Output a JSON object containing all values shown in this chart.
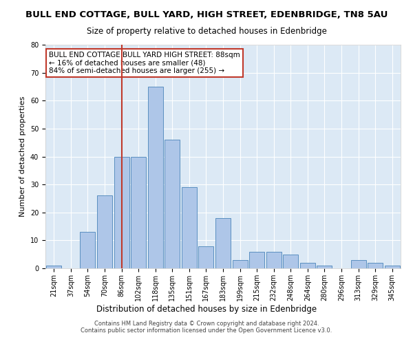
{
  "title": "BULL END COTTAGE, BULL YARD, HIGH STREET, EDENBRIDGE, TN8 5AU",
  "subtitle": "Size of property relative to detached houses in Edenbridge",
  "xlabel": "Distribution of detached houses by size in Edenbridge",
  "ylabel": "Number of detached properties",
  "categories": [
    "21sqm",
    "37sqm",
    "54sqm",
    "70sqm",
    "86sqm",
    "102sqm",
    "118sqm",
    "135sqm",
    "151sqm",
    "167sqm",
    "183sqm",
    "199sqm",
    "215sqm",
    "232sqm",
    "248sqm",
    "264sqm",
    "280sqm",
    "296sqm",
    "313sqm",
    "329sqm",
    "345sqm"
  ],
  "values": [
    1,
    0,
    13,
    26,
    40,
    40,
    65,
    46,
    29,
    8,
    18,
    3,
    6,
    6,
    5,
    2,
    1,
    0,
    3,
    2,
    1
  ],
  "bar_color": "#aec6e8",
  "bar_edge_color": "#5a8fc0",
  "background_color": "#dce9f5",
  "vline_x_index": 4,
  "vline_color": "#c0392b",
  "annotation_text": "BULL END COTTAGE BULL YARD HIGH STREET: 88sqm\n← 16% of detached houses are smaller (48)\n84% of semi-detached houses are larger (255) →",
  "annotation_box_color": "#ffffff",
  "annotation_box_edge": "#c0392b",
  "ylim": [
    0,
    80
  ],
  "yticks": [
    0,
    10,
    20,
    30,
    40,
    50,
    60,
    70,
    80
  ],
  "footer": "Contains HM Land Registry data © Crown copyright and database right 2024.\nContains public sector information licensed under the Open Government Licence v3.0.",
  "title_fontsize": 9.5,
  "subtitle_fontsize": 8.5,
  "xlabel_fontsize": 8.5,
  "ylabel_fontsize": 8,
  "tick_fontsize": 7,
  "annotation_fontsize": 7.5,
  "footer_fontsize": 6
}
